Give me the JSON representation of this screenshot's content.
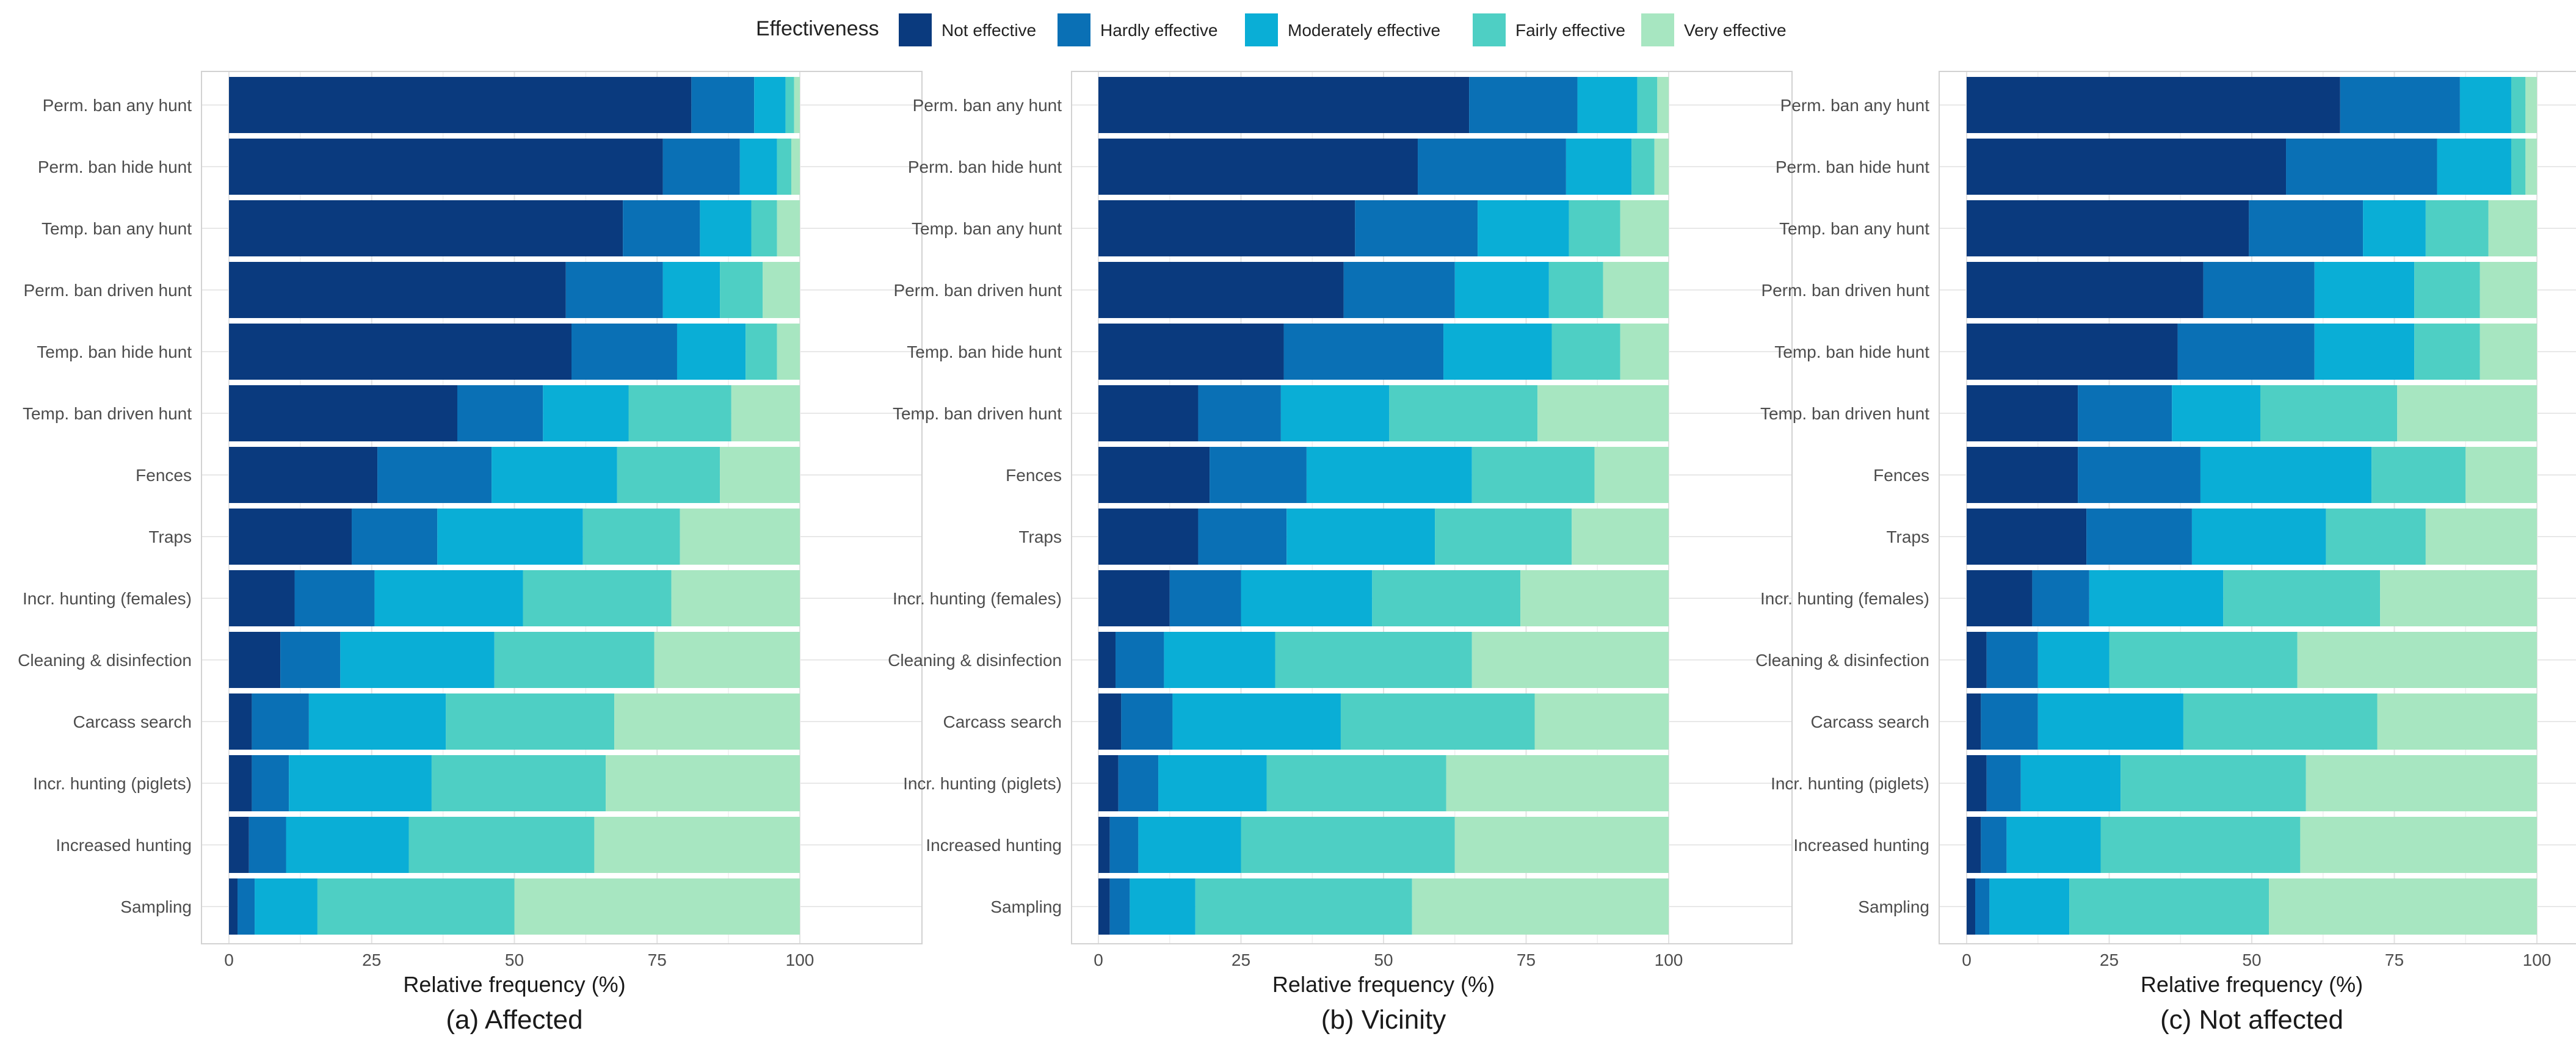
{
  "legend": {
    "title": "Effectiveness",
    "items": [
      {
        "label": "Not effective",
        "color": "#0a3a7e"
      },
      {
        "label": "Hardly effective",
        "color": "#0a70b5"
      },
      {
        "label": "Moderately effective",
        "color": "#0aaed6"
      },
      {
        "label": "Fairly effective",
        "color": "#4ecfc4"
      },
      {
        "label": "Very effective",
        "color": "#a7e6c1"
      }
    ]
  },
  "chart_data": [
    {
      "type": "bar",
      "orientation": "horizontal",
      "stacked": true,
      "title": "(a) Affected",
      "xlabel": "Relative frequency (%)",
      "ylabel": "",
      "xlim": [
        0,
        100
      ],
      "xticks": [
        0,
        25,
        50,
        75,
        100
      ],
      "categories": [
        "Perm. ban any hunt",
        "Perm. ban hide hunt",
        "Temp. ban any hunt",
        "Perm. ban driven hunt",
        "Temp. ban hide hunt",
        "Temp. ban driven hunt",
        "Fences",
        "Traps",
        "Incr. hunting (females)",
        "Cleaning & disinfection",
        "Carcass search",
        "Incr. hunting (piglets)",
        "Increased hunting",
        "Sampling"
      ],
      "series": [
        {
          "name": "Not effective",
          "values": [
            81,
            76,
            69,
            59,
            60,
            40,
            26,
            21.5,
            11.5,
            9,
            4,
            4,
            3.5,
            1.5
          ]
        },
        {
          "name": "Hardly effective",
          "values": [
            11,
            13.5,
            13.5,
            17,
            18.5,
            15,
            20,
            15,
            14,
            10.5,
            10,
            6.5,
            6.5,
            3
          ]
        },
        {
          "name": "Moderately effective",
          "values": [
            5.5,
            6.5,
            9,
            10,
            12,
            15,
            22,
            25.5,
            26,
            27,
            24,
            25,
            21.5,
            11
          ]
        },
        {
          "name": "Fairly effective",
          "values": [
            1.5,
            2.5,
            4.5,
            7.5,
            5.5,
            18,
            18,
            17,
            26,
            28,
            29.5,
            30.5,
            32.5,
            34.5
          ]
        },
        {
          "name": "Very effective",
          "values": [
            1,
            1.5,
            4,
            6.5,
            4,
            12,
            14,
            21,
            22.5,
            25.5,
            32.5,
            34,
            36,
            50
          ]
        }
      ]
    },
    {
      "type": "bar",
      "orientation": "horizontal",
      "stacked": true,
      "title": "(b) Vicinity",
      "xlabel": "Relative frequency (%)",
      "ylabel": "",
      "xlim": [
        0,
        100
      ],
      "xticks": [
        0,
        25,
        50,
        75,
        100
      ],
      "categories": [
        "Perm. ban any hunt",
        "Perm. ban hide hunt",
        "Temp. ban any hunt",
        "Perm. ban driven hunt",
        "Temp. ban hide hunt",
        "Temp. ban driven hunt",
        "Fences",
        "Traps",
        "Incr. hunting (females)",
        "Cleaning & disinfection",
        "Carcass search",
        "Incr. hunting (piglets)",
        "Increased hunting",
        "Sampling"
      ],
      "series": [
        {
          "name": "Not effective",
          "values": [
            65,
            56,
            45,
            43,
            32.5,
            17.5,
            19.5,
            17.5,
            12.5,
            3,
            4,
            3.5,
            2,
            2
          ]
        },
        {
          "name": "Hardly effective",
          "values": [
            19,
            26,
            21.5,
            19.5,
            28,
            14.5,
            17,
            15.5,
            12.5,
            8.5,
            9,
            7,
            5,
            3.5
          ]
        },
        {
          "name": "Moderately effective",
          "values": [
            10.5,
            11.5,
            16,
            16.5,
            19,
            19,
            29,
            26,
            23,
            19.5,
            29.5,
            19,
            18,
            11.5
          ]
        },
        {
          "name": "Fairly effective",
          "values": [
            3.5,
            4,
            9,
            9.5,
            12,
            26,
            21.5,
            24,
            26,
            34.5,
            34,
            31.5,
            37.5,
            38
          ]
        },
        {
          "name": "Very effective",
          "values": [
            2,
            2.5,
            8.5,
            11.5,
            8.5,
            23,
            13,
            17,
            26,
            34.5,
            23.5,
            39,
            37.5,
            45
          ]
        }
      ]
    },
    {
      "type": "bar",
      "orientation": "horizontal",
      "stacked": true,
      "title": "(c) Not affected",
      "xlabel": "Relative frequency (%)",
      "ylabel": "",
      "xlim": [
        0,
        100
      ],
      "xticks": [
        0,
        25,
        50,
        75,
        100
      ],
      "categories": [
        "Perm. ban any hunt",
        "Perm. ban hide hunt",
        "Temp. ban any hunt",
        "Perm. ban driven hunt",
        "Temp. ban hide hunt",
        "Temp. ban driven hunt",
        "Fences",
        "Traps",
        "Incr. hunting (females)",
        "Cleaning & disinfection",
        "Carcass search",
        "Incr. hunting (piglets)",
        "Increased hunting",
        "Sampling"
      ],
      "series": [
        {
          "name": "Not effective",
          "values": [
            65.5,
            56,
            49.5,
            41.5,
            37,
            19.5,
            19.5,
            21,
            11.5,
            3.5,
            2.5,
            3.5,
            2.5,
            1.5
          ]
        },
        {
          "name": "Hardly effective",
          "values": [
            21,
            26.5,
            20,
            19.5,
            24,
            16.5,
            21.5,
            18.5,
            10,
            9,
            10,
            6,
            4.5,
            2.5
          ]
        },
        {
          "name": "Moderately effective",
          "values": [
            9,
            13,
            11,
            17.5,
            17.5,
            15.5,
            30,
            23.5,
            23.5,
            12.5,
            25.5,
            17.5,
            16.5,
            14
          ]
        },
        {
          "name": "Fairly effective",
          "values": [
            2.5,
            2.5,
            11,
            11.5,
            11.5,
            24,
            16.5,
            17.5,
            27.5,
            33,
            34,
            32.5,
            35,
            35
          ]
        },
        {
          "name": "Very effective",
          "values": [
            2,
            2,
            8.5,
            10,
            10,
            24.5,
            12.5,
            19.5,
            27.5,
            42,
            28,
            40.5,
            41.5,
            47
          ]
        }
      ]
    }
  ]
}
